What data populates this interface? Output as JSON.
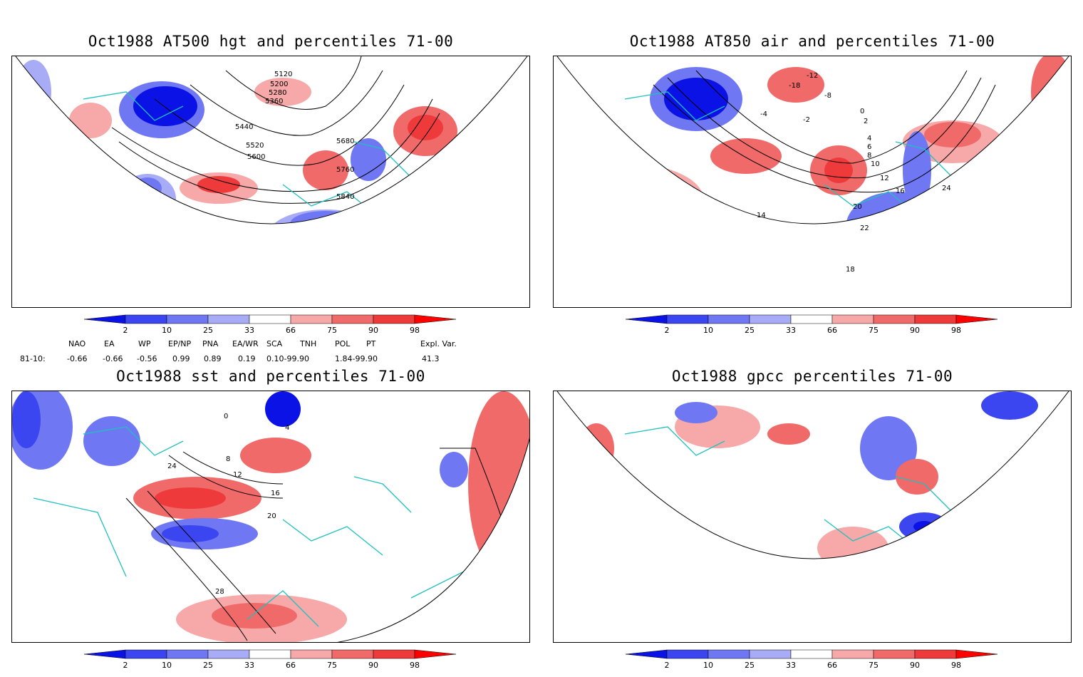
{
  "panels": [
    {
      "id": "z500",
      "title": "Oct1988 AT500 hgt and percentiles 71-00",
      "contour_labels": [
        "5120",
        "5200",
        "5280",
        "5360",
        "5440",
        "5520",
        "5600",
        "5680",
        "5760",
        "5840"
      ]
    },
    {
      "id": "t850",
      "title": "Oct1988 AT850 air and percentiles 71-00",
      "contour_labels": [
        "-18",
        "-12",
        "-8",
        "-4",
        "-2",
        "0",
        "2",
        "4",
        "6",
        "8",
        "10",
        "12",
        "14",
        "16",
        "18",
        "20",
        "22",
        "24"
      ]
    },
    {
      "id": "sst",
      "title": "Oct1988 sst and percentiles 71-00",
      "contour_labels": [
        "0",
        "4",
        "8",
        "12",
        "16",
        "20",
        "24",
        "28"
      ]
    },
    {
      "id": "gpcc",
      "title": "Oct1988 gpcc percentiles 71-00",
      "contour_labels": []
    }
  ],
  "colorbar": {
    "labels": [
      "2",
      "10",
      "25",
      "33",
      "66",
      "75",
      "90",
      "98"
    ],
    "colors": [
      "#0a12e6",
      "#3b46f0",
      "#6f78f2",
      "#a8acf6",
      "#ffffff",
      "#f7a8a8",
      "#f06a6a",
      "#ee3a3a",
      "#ff0000"
    ]
  },
  "indices": {
    "headers": [
      "NAO",
      "EA",
      "WP",
      "EP/NP",
      "PNA",
      "EA/WR",
      "SCA",
      "TNH",
      "POL",
      "PT",
      "Expl. Var."
    ],
    "row_label": "81-10:",
    "values": [
      "-0.66",
      "-0.66",
      "-0.56",
      "0.99",
      "0.89",
      "0.19",
      "0.10-99.90",
      "1.84-99.90",
      "41.3"
    ]
  }
}
